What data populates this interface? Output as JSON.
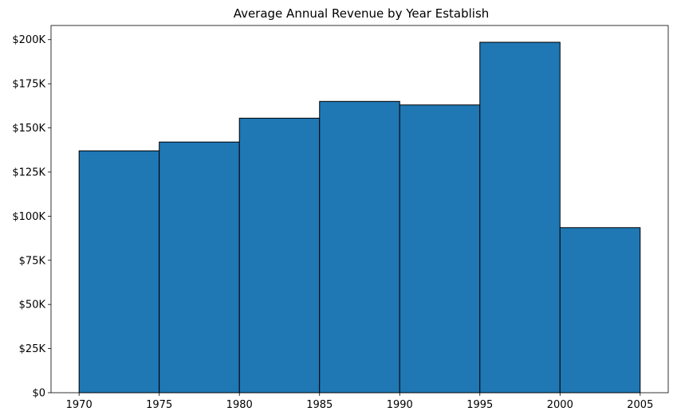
{
  "chart_data": {
    "type": "bar",
    "title": "Average Annual Revenue by Year Establish",
    "xlabel": "",
    "ylabel": "",
    "bin_edges": [
      1970,
      1975,
      1980,
      1985,
      1990,
      1995,
      2000,
      2005
    ],
    "values": [
      137000,
      142000,
      155500,
      165000,
      163000,
      198500,
      93500
    ],
    "xlim": [
      1968.25,
      2006.75
    ],
    "ylim": [
      0,
      208000
    ],
    "x_ticks": [
      1970,
      1975,
      1980,
      1985,
      1990,
      1995,
      2000,
      2005
    ],
    "x_tick_labels": [
      "1970",
      "1975",
      "1980",
      "1985",
      "1990",
      "1995",
      "2000",
      "2005"
    ],
    "y_ticks": [
      0,
      25000,
      50000,
      75000,
      100000,
      125000,
      150000,
      175000,
      200000
    ],
    "y_tick_labels": [
      "$0",
      "$25K",
      "$50K",
      "$75K",
      "$100K",
      "$125K",
      "$150K",
      "$175K",
      "$200K"
    ],
    "grid": false,
    "bar_color": "#1f77b4",
    "edge_color": "#000000"
  }
}
